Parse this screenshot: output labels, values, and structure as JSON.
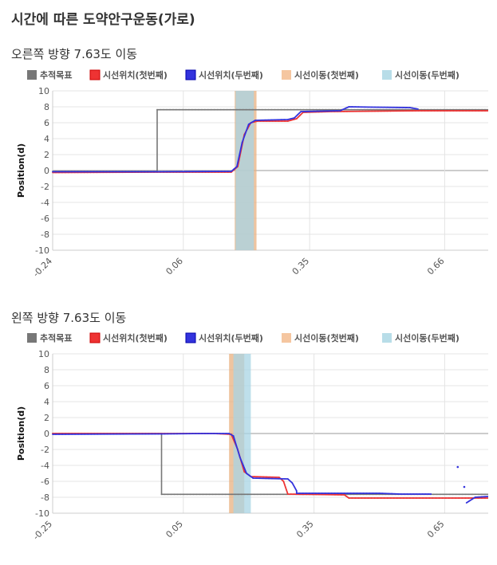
{
  "page": {
    "title": "시간에 따른 도약안구운동(가로)"
  },
  "chart_data": [
    {
      "type": "line",
      "title": "오른쪽 방향 7.63도 이동",
      "ylabel": "Position(d)",
      "xlabel": "",
      "x_ticks": [
        "-0.24",
        "0.06",
        "0.35",
        "0.66"
      ],
      "y_ticks": [
        10,
        8,
        6,
        4,
        2,
        0,
        -2,
        -4,
        -6,
        -8,
        -10
      ],
      "xlim": [
        -0.24,
        0.76
      ],
      "ylim": [
        -10,
        10
      ],
      "grid": true,
      "legend_position": "top",
      "legend": [
        {
          "name": "추적목표",
          "color": "#777777"
        },
        {
          "name": "시선위치(첫번째)",
          "color": "#ee3333"
        },
        {
          "name": "시선위치(두번째)",
          "color": "#3333dd"
        },
        {
          "name": "시선이동(첫번째)",
          "color": "#f5c6a0"
        },
        {
          "name": "시선이동(두번째)",
          "color": "#b8dde8"
        }
      ],
      "bands": [
        {
          "series": "시선이동(첫번째)",
          "x": [
            0.178,
            0.228
          ],
          "color": "#e8b080"
        },
        {
          "series": "시선이동(두번째)",
          "x": [
            0.18,
            0.222
          ],
          "color": "#a8d4e4"
        }
      ],
      "series": [
        {
          "name": "추적목표",
          "color": "#777777",
          "points": [
            [
              -0.24,
              -0.1
            ],
            [
              0.0,
              -0.1
            ],
            [
              0.0,
              7.63
            ],
            [
              0.76,
              7.63
            ]
          ]
        },
        {
          "name": "시선위치(첫번째)",
          "color": "#ee3333",
          "points": [
            [
              -0.24,
              -0.25
            ],
            [
              0.0,
              -0.2
            ],
            [
              0.17,
              -0.2
            ],
            [
              0.185,
              0.5
            ],
            [
              0.2,
              4.5
            ],
            [
              0.215,
              6.0
            ],
            [
              0.23,
              6.2
            ],
            [
              0.3,
              6.2
            ],
            [
              0.32,
              6.5
            ],
            [
              0.335,
              7.3
            ],
            [
              0.4,
              7.4
            ],
            [
              0.5,
              7.45
            ],
            [
              0.6,
              7.5
            ],
            [
              0.76,
              7.5
            ]
          ]
        },
        {
          "name": "시선위치(두번째)",
          "color": "#3333dd",
          "points": [
            [
              -0.24,
              -0.15
            ],
            [
              0.0,
              -0.15
            ],
            [
              0.17,
              -0.1
            ],
            [
              0.183,
              0.5
            ],
            [
              0.195,
              3.5
            ],
            [
              0.21,
              5.8
            ],
            [
              0.225,
              6.3
            ],
            [
              0.3,
              6.4
            ],
            [
              0.315,
              6.6
            ],
            [
              0.33,
              7.4
            ],
            [
              0.42,
              7.5
            ],
            [
              0.44,
              8.0
            ],
            [
              0.5,
              7.95
            ],
            [
              0.58,
              7.9
            ],
            [
              0.6,
              7.7
            ]
          ]
        }
      ]
    },
    {
      "type": "line",
      "title": "왼쪽 방향 7.63도 이동",
      "ylabel": "Position(d)",
      "xlabel": "",
      "x_ticks": [
        "-0.25",
        "0.05",
        "0.35",
        "0.65"
      ],
      "y_ticks": [
        10,
        8,
        6,
        4,
        2,
        0,
        -2,
        -4,
        -6,
        -8,
        -10
      ],
      "xlim": [
        -0.25,
        0.75
      ],
      "ylim": [
        -10,
        10
      ],
      "grid": true,
      "legend_position": "top",
      "legend": [
        {
          "name": "추적목표",
          "color": "#777777"
        },
        {
          "name": "시선위치(첫번째)",
          "color": "#ee3333"
        },
        {
          "name": "시선위치(두번째)",
          "color": "#3333dd"
        },
        {
          "name": "시선이동(첫번째)",
          "color": "#f5c6a0"
        },
        {
          "name": "시선이동(두번째)",
          "color": "#b8dde8"
        }
      ],
      "bands": [
        {
          "series": "시선이동(첫번째)",
          "x": [
            0.155,
            0.19
          ],
          "color": "#e8b080"
        },
        {
          "series": "시선이동(두번째)",
          "x": [
            0.165,
            0.205
          ],
          "color": "#a8d4e4"
        }
      ],
      "series": [
        {
          "name": "추적목표",
          "color": "#777777",
          "points": [
            [
              -0.25,
              0.0
            ],
            [
              0.0,
              0.0
            ],
            [
              0.0,
              -7.63
            ],
            [
              0.75,
              -7.63
            ]
          ]
        },
        {
          "name": "시선위치(첫번째)",
          "color": "#ee3333",
          "points": [
            [
              -0.25,
              0.0
            ],
            [
              0.0,
              0.0
            ],
            [
              0.05,
              0.0
            ],
            [
              0.12,
              0.0
            ],
            [
              0.16,
              -0.1
            ],
            [
              0.175,
              -2.0
            ],
            [
              0.19,
              -4.8
            ],
            [
              0.205,
              -5.4
            ],
            [
              0.27,
              -5.5
            ],
            [
              0.28,
              -6.0
            ],
            [
              0.29,
              -7.6
            ],
            [
              0.42,
              -7.7
            ],
            [
              0.43,
              -8.1
            ],
            [
              0.6,
              -8.1
            ],
            [
              0.75,
              -8.1
            ]
          ]
        },
        {
          "name": "시선위치(두번째)",
          "color": "#3333dd",
          "points": [
            [
              -0.25,
              -0.1
            ],
            [
              0.0,
              -0.05
            ],
            [
              0.1,
              0.0
            ],
            [
              0.155,
              0.0
            ],
            [
              0.165,
              -0.3
            ],
            [
              0.18,
              -3.0
            ],
            [
              0.195,
              -5.0
            ],
            [
              0.21,
              -5.6
            ],
            [
              0.29,
              -5.7
            ],
            [
              0.3,
              -6.2
            ],
            [
              0.31,
              -7.2
            ],
            [
              0.31,
              -7.5
            ],
            [
              0.5,
              -7.5
            ],
            [
              0.55,
              -7.6
            ],
            [
              0.62,
              -7.6
            ]
          ]
        },
        {
          "name": "시선위치(두번째)",
          "color": "#3333dd",
          "points": [
            [
              0.7,
              -8.7
            ],
            [
              0.72,
              -8.0
            ],
            [
              0.75,
              -7.9
            ]
          ]
        }
      ],
      "scatter_points": [
        {
          "color": "#3333dd",
          "points": [
            [
              0.68,
              -4.2
            ],
            [
              0.695,
              -6.7
            ]
          ]
        }
      ]
    }
  ]
}
